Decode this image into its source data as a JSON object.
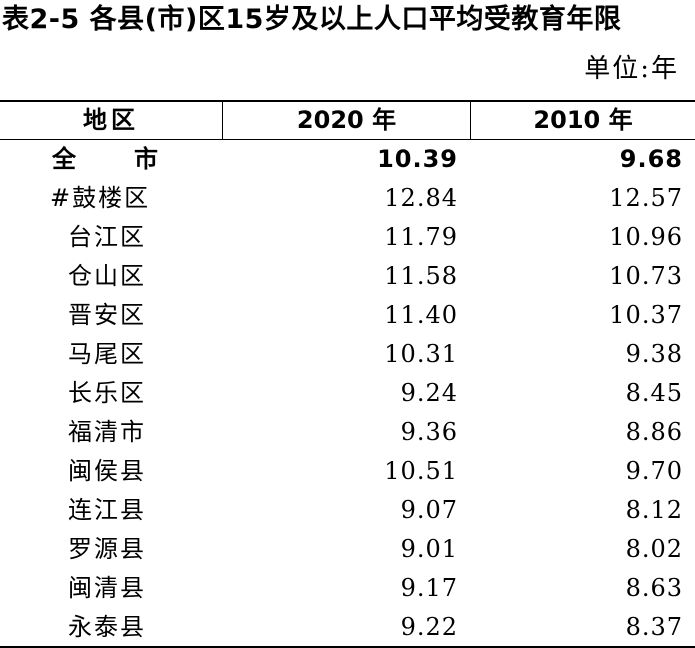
{
  "table": {
    "title": "表2-5 各县(市)区15岁及以上人口平均受教育年限",
    "unit": "单位:年",
    "headers": {
      "region": "地区",
      "y2020": "2020 年",
      "y2010": "2010 年"
    },
    "rows": [
      {
        "region": "全市",
        "y2020": "10.39",
        "y2010": "9.68"
      },
      {
        "region": "#鼓楼区",
        "y2020": "12.84",
        "y2010": "12.57"
      },
      {
        "region": "台江区",
        "y2020": "11.79",
        "y2010": "10.96"
      },
      {
        "region": "仓山区",
        "y2020": "11.58",
        "y2010": "10.73"
      },
      {
        "region": "晋安区",
        "y2020": "11.40",
        "y2010": "10.37"
      },
      {
        "region": "马尾区",
        "y2020": "10.31",
        "y2010": "9.38"
      },
      {
        "region": "长乐区",
        "y2020": "9.24",
        "y2010": "8.45"
      },
      {
        "region": "福清市",
        "y2020": "9.36",
        "y2010": "8.86"
      },
      {
        "region": "闽侯县",
        "y2020": "10.51",
        "y2010": "9.70"
      },
      {
        "region": "连江县",
        "y2020": "9.07",
        "y2010": "8.12"
      },
      {
        "region": "罗源县",
        "y2020": "9.01",
        "y2010": "8.02"
      },
      {
        "region": "闽清县",
        "y2020": "9.17",
        "y2010": "8.63"
      },
      {
        "region": "永泰县",
        "y2020": "9.22",
        "y2010": "8.37"
      }
    ]
  }
}
